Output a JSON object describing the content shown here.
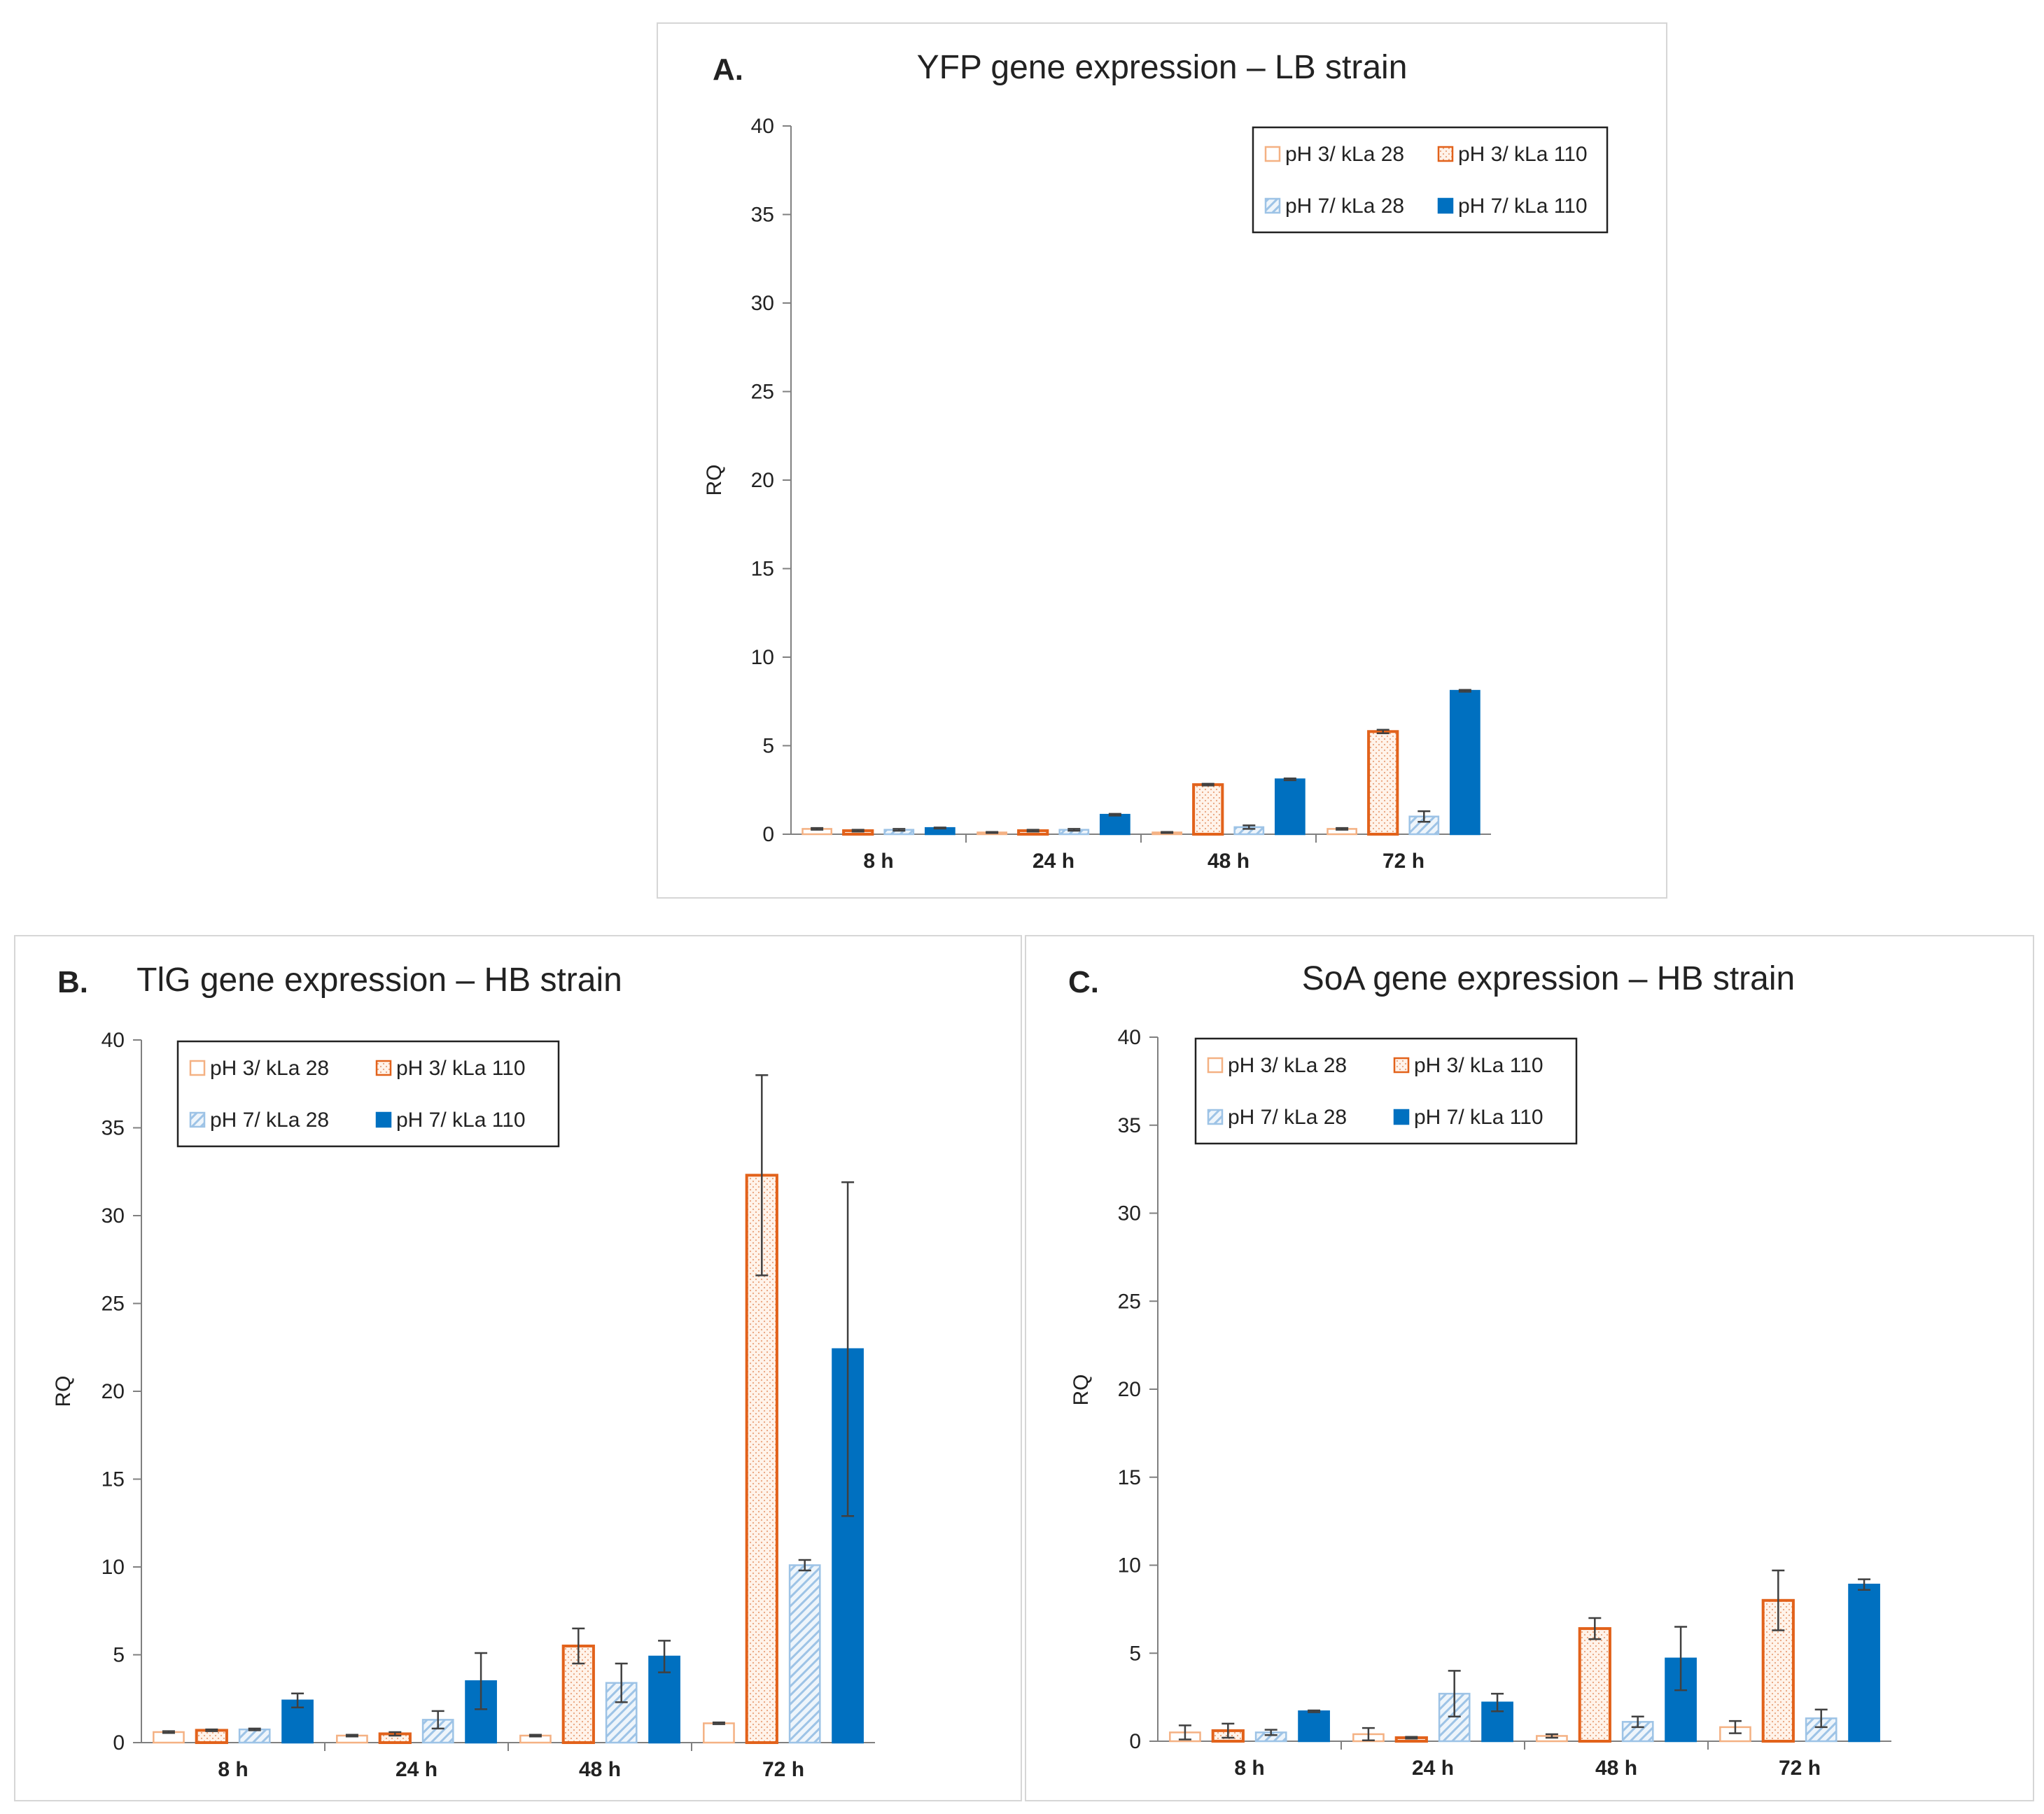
{
  "colors": {
    "orange": "#E2621B",
    "light_orange": "#F4B183",
    "light_blue": "#9DC3E6",
    "dark_blue": "#0070C0",
    "axis": "#808080",
    "error": "#404040"
  },
  "chart_data": [
    {
      "type": "bar",
      "label": "A.",
      "title": "YFP gene expression – LB strain",
      "xlabel": "",
      "ylabel": "RQ",
      "ylim": [
        0,
        40
      ],
      "yticks": [
        "0",
        "5",
        "10",
        "15",
        "20",
        "25",
        "30",
        "35",
        "40"
      ],
      "categories": [
        "8 h",
        "24 h",
        "48 h",
        "72 h"
      ],
      "legend_position": "top-right",
      "series": [
        {
          "name": "pH 3/ kLa 28",
          "values": [
            0.3,
            0.1,
            0.1,
            0.3
          ],
          "errors": [
            0.05,
            0.03,
            0.03,
            0.05
          ]
        },
        {
          "name": "pH 3/ kLa 110",
          "values": [
            0.2,
            0.2,
            2.8,
            5.8
          ],
          "errors": [
            0.05,
            0.05,
            0.05,
            0.1
          ]
        },
        {
          "name": "pH 7/ kLa 28",
          "values": [
            0.25,
            0.25,
            0.4,
            1.0
          ],
          "errors": [
            0.05,
            0.05,
            0.1,
            0.3
          ]
        },
        {
          "name": "pH 7/ kLa 110",
          "values": [
            0.35,
            1.1,
            3.1,
            8.1
          ],
          "errors": [
            0.03,
            0.05,
            0.05,
            0.05
          ]
        }
      ]
    },
    {
      "type": "bar",
      "label": "B.",
      "title": "TlG gene expression – HB strain",
      "xlabel": "",
      "ylabel": "RQ",
      "ylim": [
        0,
        40
      ],
      "yticks": [
        "0",
        "5",
        "10",
        "15",
        "20",
        "25",
        "30",
        "35",
        "40"
      ],
      "categories": [
        "8 h",
        "24 h",
        "48 h",
        "72 h"
      ],
      "legend_position": "top-left",
      "series": [
        {
          "name": "pH 3/ kLa 28",
          "values": [
            0.6,
            0.4,
            0.4,
            1.1
          ],
          "errors": [
            0.05,
            0.05,
            0.05,
            0.05
          ]
        },
        {
          "name": "pH 3/ kLa 110",
          "values": [
            0.7,
            0.5,
            5.5,
            32.3
          ],
          "errors": [
            0.05,
            0.1,
            1.0,
            5.7
          ]
        },
        {
          "name": "pH 7/ kLa 28",
          "values": [
            0.75,
            1.3,
            3.4,
            10.1
          ],
          "errors": [
            0.05,
            0.5,
            1.1,
            0.3
          ]
        },
        {
          "name": "pH 7/ kLa 110",
          "values": [
            2.4,
            3.5,
            4.9,
            22.4
          ],
          "errors": [
            0.4,
            1.6,
            0.9,
            9.5
          ]
        }
      ]
    },
    {
      "type": "bar",
      "label": "C.",
      "title": "SoA gene expression – HB strain",
      "xlabel": "",
      "ylabel": "RQ",
      "ylim": [
        0,
        40
      ],
      "yticks": [
        "0",
        "5",
        "10",
        "15",
        "20",
        "25",
        "30",
        "35",
        "40"
      ],
      "categories": [
        "8 h",
        "24 h",
        "48 h",
        "72 h"
      ],
      "legend_position": "top-left",
      "series": [
        {
          "name": "pH 3/ kLa 28",
          "values": [
            0.5,
            0.4,
            0.3,
            0.8
          ],
          "errors": [
            0.4,
            0.35,
            0.1,
            0.35
          ]
        },
        {
          "name": "pH 3/ kLa 110",
          "values": [
            0.6,
            0.2,
            6.4,
            8.0
          ],
          "errors": [
            0.4,
            0.05,
            0.6,
            1.7
          ]
        },
        {
          "name": "pH 7/ kLa 28",
          "values": [
            0.5,
            2.7,
            1.1,
            1.3
          ],
          "errors": [
            0.15,
            1.3,
            0.3,
            0.5
          ]
        },
        {
          "name": "pH 7/ kLa 110",
          "values": [
            1.7,
            2.2,
            4.7,
            8.9
          ],
          "errors": [
            0.05,
            0.5,
            1.8,
            0.3
          ]
        }
      ]
    }
  ]
}
